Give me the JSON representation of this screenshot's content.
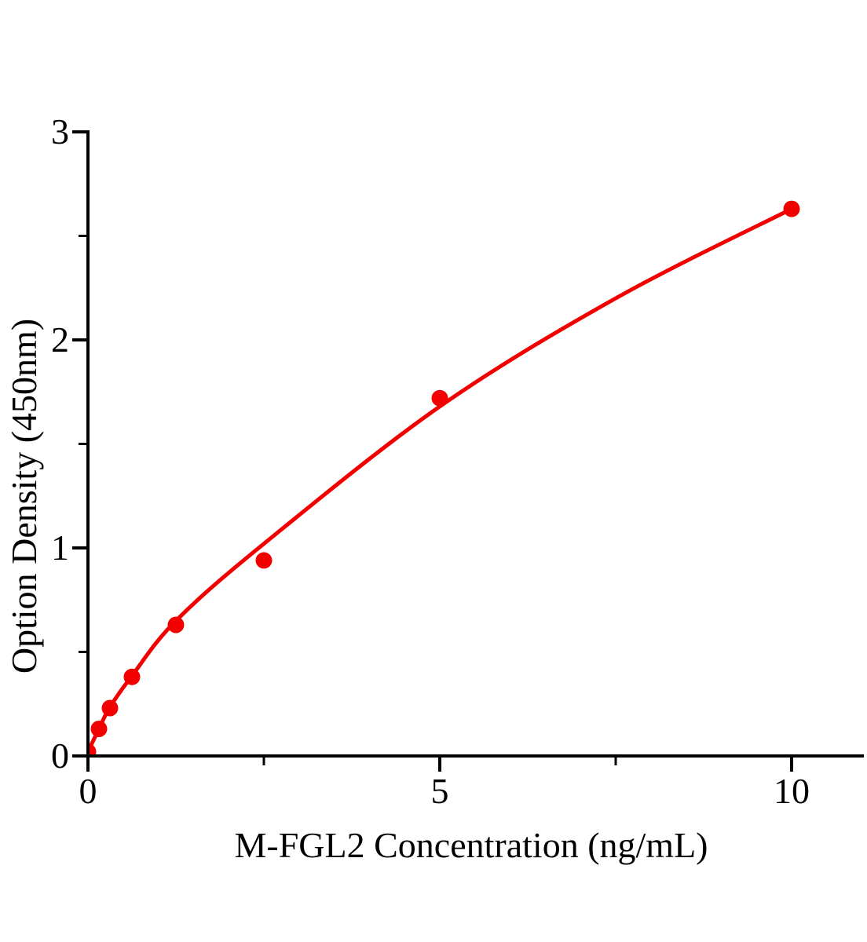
{
  "page": {
    "background": "#ffffff"
  },
  "chart_data": {
    "type": "scatter",
    "title": "",
    "xlabel": "M-FGL2 Concentration (ng/mL)",
    "ylabel": "Option Density (450nm)",
    "x": [
      0,
      0.156,
      0.3125,
      0.625,
      1.25,
      2.5,
      5,
      10
    ],
    "y": [
      0.02,
      0.13,
      0.23,
      0.38,
      0.63,
      0.94,
      1.72,
      2.63
    ],
    "fit_curve": {
      "x": [
        0,
        0.156,
        0.3125,
        0.625,
        1.25,
        2.5,
        5,
        7.5,
        10
      ],
      "y": [
        0.02,
        0.13,
        0.235,
        0.385,
        0.65,
        1.02,
        1.68,
        2.2,
        2.63
      ]
    },
    "xlim": [
      0,
      11
    ],
    "ylim": [
      0,
      3
    ],
    "x_major_ticks": [
      0,
      5,
      10
    ],
    "x_tick_labels": [
      "0",
      "5",
      "10"
    ],
    "x_minor_ticks": [
      2.5,
      7.5
    ],
    "y_major_ticks": [
      0,
      1,
      2,
      3
    ],
    "y_tick_labels": [
      "0",
      "1",
      "2",
      "3"
    ],
    "y_minor_ticks": [
      0.5,
      1.5,
      2.5
    ],
    "grid": false,
    "legend": false,
    "line_color": "#f20000",
    "marker_color": "#f20000",
    "axis_color": "#000000"
  }
}
